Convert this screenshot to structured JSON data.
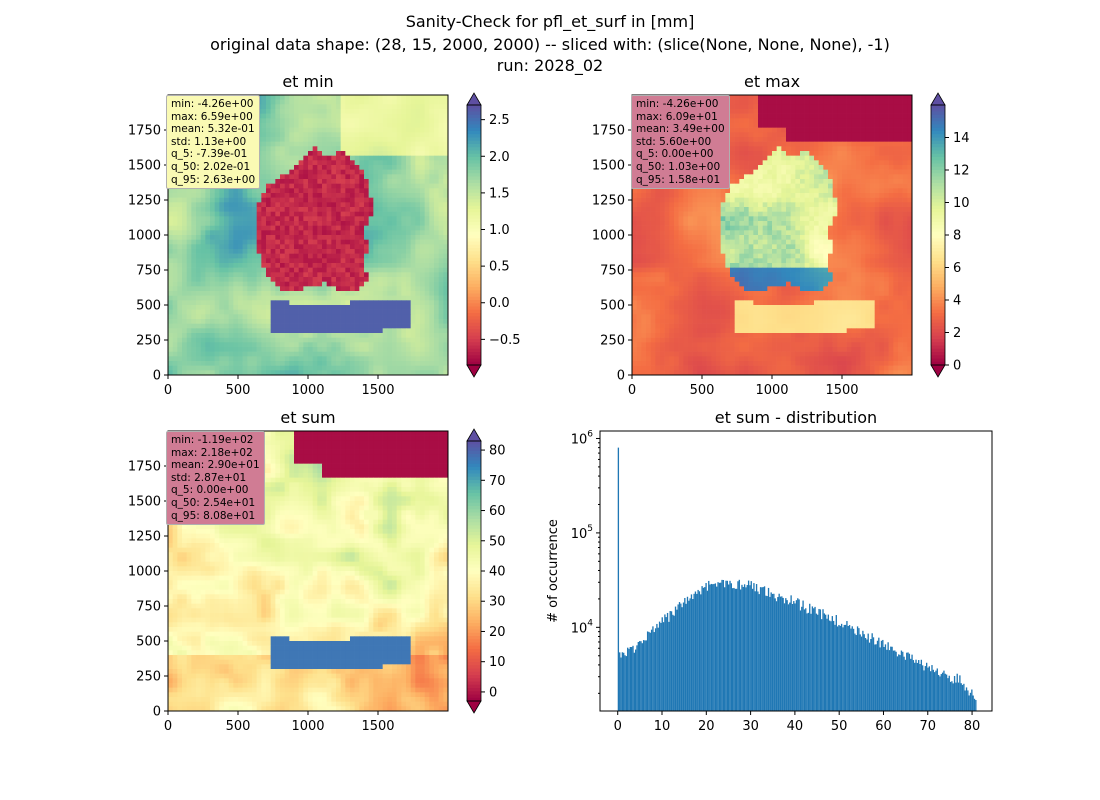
{
  "suptitle": {
    "line1": "Sanity-Check for pfl_et_surf in [mm]",
    "line2": "original data shape: (28, 15, 2000, 2000) -- sliced with: (slice(None, None, None), -1)",
    "line3": "run: 2028_02"
  },
  "colormap": "Spectral",
  "chart_data": [
    {
      "type": "heatmap",
      "title": "et min",
      "xlim": [
        0,
        2000
      ],
      "ylim": [
        0,
        2000
      ],
      "xticks": [
        0,
        500,
        1000,
        1500
      ],
      "yticks": [
        0,
        250,
        500,
        750,
        1000,
        1250,
        1500,
        1750
      ],
      "colorbar": {
        "range": [
          -0.85,
          2.7
        ],
        "ticks": [
          -0.5,
          0.0,
          0.5,
          1.0,
          1.5,
          2.0,
          2.5
        ],
        "tick_labels": [
          "−0.5",
          "0.0",
          "0.5",
          "1.0",
          "1.5",
          "2.0",
          "2.5"
        ],
        "extend": "both"
      },
      "stats": [
        "min: -4.26e+00",
        "max: 6.59e+00",
        "mean: 5.32e-01",
        "std: 1.13e+00",
        "q_5: -7.39e-01",
        "q_50: 2.02e-01",
        "q_95: 2.63e+00"
      ],
      "stats_box_color": "#fafab4"
    },
    {
      "type": "heatmap",
      "title": "et max",
      "xlim": [
        0,
        2000
      ],
      "ylim": [
        0,
        2000
      ],
      "xticks": [
        0,
        500,
        1000,
        1500
      ],
      "yticks": [
        0,
        250,
        500,
        750,
        1000,
        1250,
        1500,
        1750
      ],
      "colorbar": {
        "range": [
          0,
          16
        ],
        "ticks": [
          0,
          2,
          4,
          6,
          8,
          10,
          12,
          14
        ],
        "tick_labels": [
          "0",
          "2",
          "4",
          "6",
          "8",
          "10",
          "12",
          "14"
        ],
        "extend": "both"
      },
      "stats": [
        "min: -4.26e+00",
        "max: 6.09e+01",
        "mean: 3.49e+00",
        "std: 5.60e+00",
        "q_5: 0.00e+00",
        "q_50: 1.03e+00",
        "q_95: 1.58e+01"
      ],
      "stats_box_color": "#d07c94"
    },
    {
      "type": "heatmap",
      "title": "et sum",
      "xlim": [
        0,
        2000
      ],
      "ylim": [
        0,
        2000
      ],
      "xticks": [
        0,
        500,
        1000,
        1500
      ],
      "yticks": [
        0,
        250,
        500,
        750,
        1000,
        1250,
        1500,
        1750
      ],
      "colorbar": {
        "range": [
          -3,
          83
        ],
        "ticks": [
          0,
          10,
          20,
          30,
          40,
          50,
          60,
          70,
          80
        ],
        "tick_labels": [
          "0",
          "10",
          "20",
          "30",
          "40",
          "50",
          "60",
          "70",
          "80"
        ],
        "extend": "both"
      },
      "stats": [
        "min: -1.19e+02",
        "max: 2.18e+02",
        "mean: 2.90e+01",
        "std: 2.87e+01",
        "q_5: 0.00e+00",
        "q_50: 2.54e+01",
        "q_95: 8.08e+01"
      ],
      "stats_box_color": "#d07c94"
    },
    {
      "type": "bar",
      "title": "et sum - distribution",
      "ylabel": "# of occurrence",
      "yscale": "log",
      "ylim": [
        1300,
        1200000
      ],
      "yticks": [
        10000,
        100000,
        1000000
      ],
      "ytick_labels": [
        {
          "base": "10",
          "exp": "4"
        },
        {
          "base": "10",
          "exp": "5"
        },
        {
          "base": "10",
          "exp": "6"
        }
      ],
      "xlim": [
        -4,
        84.5
      ],
      "xticks": [
        0,
        10,
        20,
        30,
        40,
        50,
        60,
        70,
        80
      ],
      "xtick_labels": [
        "0",
        "10",
        "20",
        "30",
        "40",
        "50",
        "60",
        "70",
        "80"
      ],
      "bar_color": "#1f77b4",
      "bin_width": 0.3,
      "envelope": [
        [
          0,
          5900
        ],
        [
          0.3,
          5600
        ],
        [
          1,
          5100
        ],
        [
          2,
          5500
        ],
        [
          3,
          5900
        ],
        [
          4,
          6300
        ],
        [
          5,
          7000
        ],
        [
          7,
          8500
        ],
        [
          10,
          11500
        ],
        [
          12,
          13800
        ],
        [
          15,
          18500
        ],
        [
          18,
          24500
        ],
        [
          20,
          27500
        ],
        [
          22,
          29500
        ],
        [
          25,
          29000
        ],
        [
          28,
          28000
        ],
        [
          30,
          27200
        ],
        [
          33,
          24500
        ],
        [
          35,
          22300
        ],
        [
          38,
          20000
        ],
        [
          40,
          18500
        ],
        [
          43,
          16000
        ],
        [
          45,
          14500
        ],
        [
          48,
          13000
        ],
        [
          50,
          11500
        ],
        [
          52,
          10000
        ],
        [
          55,
          8700
        ],
        [
          58,
          7300
        ],
        [
          60,
          6600
        ],
        [
          63,
          5600
        ],
        [
          65,
          5000
        ],
        [
          68,
          4300
        ],
        [
          70,
          3800
        ],
        [
          73,
          3300
        ],
        [
          75,
          3000
        ],
        [
          77,
          2800
        ],
        [
          78,
          2500
        ],
        [
          79,
          2100
        ],
        [
          80,
          1900
        ],
        [
          80.9,
          1500
        ]
      ],
      "spike": {
        "x": 0,
        "value": 800000
      }
    }
  ]
}
